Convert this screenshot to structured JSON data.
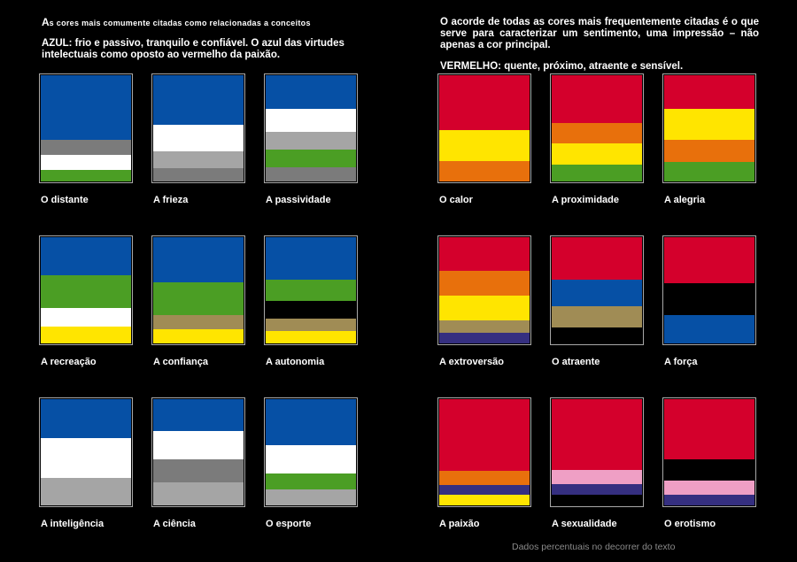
{
  "left": {
    "title_first": "A",
    "title_rest": "s cores mais comumente citadas como relacionadas a conceitos",
    "intro": "AZUL: frio e passivo, tranquilo e confiável. O azul das virtudes intelectuais como oposto ao vermelho da paixão."
  },
  "right": {
    "intro": "O acorde de todas as cores mais frequentemente citadas é o que serve para caracterizar um sentimento, uma impressão – não apenas a cor principal.",
    "subtitle": "VERMELHO: quente, próximo, atraente e sensível."
  },
  "colors": {
    "azul": "#0650a5",
    "vermelho": "#d4002c",
    "branco": "#ffffff",
    "cinza_escuro": "#7b7b7b",
    "cinza_claro": "#a5a5a5",
    "verde": "#4b9e24",
    "amarelo": "#ffe500",
    "laranja": "#e8700c",
    "marrom": "#a08c55",
    "preto": "#000000",
    "violeta": "#352f80",
    "rosa": "#ef9fc5"
  },
  "cards": [
    {
      "label": "O distante",
      "stripes": [
        [
          "#0650a5",
          64
        ],
        [
          "#7b7b7b",
          15
        ],
        [
          "#ffffff",
          15
        ],
        [
          "#4b9e24",
          11
        ]
      ]
    },
    {
      "label": "A frieza",
      "stripes": [
        [
          "#0650a5",
          56
        ],
        [
          "#ffffff",
          30
        ],
        [
          "#a5a5a5",
          19
        ],
        [
          "#7b7b7b",
          15
        ]
      ]
    },
    {
      "label": "A passividade",
      "stripes": [
        [
          "#0650a5",
          38
        ],
        [
          "#ffffff",
          26
        ],
        [
          "#a5a5a5",
          20
        ],
        [
          "#4b9e24",
          20
        ],
        [
          "#7b7b7b",
          16
        ]
      ]
    },
    {
      "label": "O calor",
      "stripes": [
        [
          "#d4002c",
          62
        ],
        [
          "#ffe500",
          35
        ],
        [
          "#e8700c",
          23
        ]
      ]
    },
    {
      "label": "A proximidade",
      "stripes": [
        [
          "#d4002c",
          54
        ],
        [
          "#e8700c",
          23
        ],
        [
          "#ffe500",
          24
        ],
        [
          "#4b9e24",
          19
        ]
      ]
    },
    {
      "label": "A alegria",
      "stripes": [
        [
          "#d4002c",
          38
        ],
        [
          "#ffe500",
          35
        ],
        [
          "#e8700c",
          25
        ],
        [
          "#4b9e24",
          22
        ]
      ]
    },
    {
      "label": "A recreação",
      "stripes": [
        [
          "#0650a5",
          43
        ],
        [
          "#4b9e24",
          37
        ],
        [
          "#ffffff",
          21
        ],
        [
          "#ffe500",
          19
        ]
      ]
    },
    {
      "label": "A confiança",
      "stripes": [
        [
          "#0650a5",
          51
        ],
        [
          "#4b9e24",
          37
        ],
        [
          "#a08c55",
          16
        ],
        [
          "#ffe500",
          16
        ]
      ]
    },
    {
      "label": "A autonomia",
      "stripes": [
        [
          "#0650a5",
          48
        ],
        [
          "#4b9e24",
          24
        ],
        [
          "#000000",
          20
        ],
        [
          "#a08c55",
          14
        ],
        [
          "#ffe500",
          14
        ]
      ]
    },
    {
      "label": "A extroversão",
      "stripes": [
        [
          "#d4002c",
          38
        ],
        [
          "#e8700c",
          28
        ],
        [
          "#ffe500",
          28
        ],
        [
          "#a08c55",
          14
        ],
        [
          "#352f80",
          12
        ]
      ]
    },
    {
      "label": "O atraente",
      "stripes": [
        [
          "#d4002c",
          48
        ],
        [
          "#0650a5",
          30
        ],
        [
          "#a08c55",
          24
        ],
        [
          "#000000",
          18
        ]
      ]
    },
    {
      "label": "A força",
      "stripes": [
        [
          "#d4002c",
          52
        ],
        [
          "#000000",
          36
        ],
        [
          "#0650a5",
          32
        ]
      ]
    },
    {
      "label": "A inteligência",
      "stripes": [
        [
          "#0650a5",
          44
        ],
        [
          "#ffffff",
          45
        ],
        [
          "#a5a5a5",
          31
        ]
      ]
    },
    {
      "label": "A ciência",
      "stripes": [
        [
          "#0650a5",
          36
        ],
        [
          "#ffffff",
          32
        ],
        [
          "#7b7b7b",
          26
        ],
        [
          "#a5a5a5",
          26
        ]
      ]
    },
    {
      "label": "O esporte",
      "stripes": [
        [
          "#0650a5",
          52
        ],
        [
          "#ffffff",
          32
        ],
        [
          "#4b9e24",
          18
        ],
        [
          "#a5a5a5",
          18
        ]
      ]
    },
    {
      "label": "A paixão",
      "stripes": [
        [
          "#d4002c",
          81
        ],
        [
          "#e8700c",
          16
        ],
        [
          "#352f80",
          11
        ],
        [
          "#ffe500",
          12
        ]
      ]
    },
    {
      "label": "A sexualidade",
      "stripes": [
        [
          "#d4002c",
          80
        ],
        [
          "#ef9fc5",
          16
        ],
        [
          "#352f80",
          12
        ],
        [
          "#000000",
          12
        ]
      ]
    },
    {
      "label": "O erotismo",
      "stripes": [
        [
          "#d4002c",
          68
        ],
        [
          "#000000",
          24
        ],
        [
          "#ef9fc5",
          16
        ],
        [
          "#352f80",
          12
        ]
      ]
    }
  ],
  "footer": "Dados percentuais no decorrer do texto"
}
